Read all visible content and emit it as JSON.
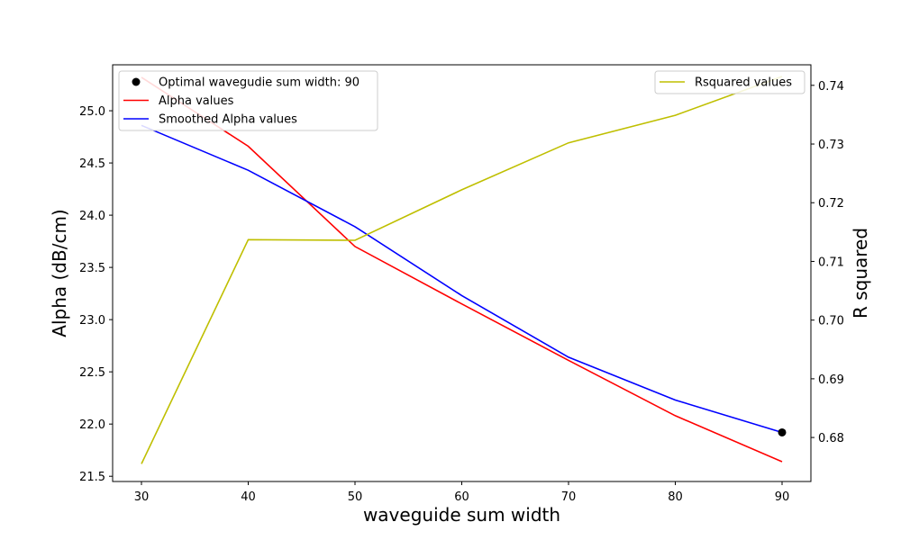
{
  "chart_data": {
    "type": "line",
    "x": [
      30,
      40,
      50,
      60,
      70,
      80,
      90
    ],
    "xlabel": "waveguide sum width",
    "xlim": [
      27.3,
      92.7
    ],
    "x_ticks": [
      30,
      40,
      50,
      60,
      70,
      80,
      90
    ],
    "left_axis": {
      "label": "Alpha (dB/cm)",
      "ylim": [
        21.45,
        25.44
      ],
      "ticks": [
        "21.5",
        "22.0",
        "22.5",
        "23.0",
        "23.5",
        "24.0",
        "24.5",
        "25.0"
      ]
    },
    "right_axis": {
      "label": "R squared",
      "ylim": [
        0.6725,
        0.7435
      ],
      "ticks": [
        "0.68",
        "0.69",
        "0.70",
        "0.71",
        "0.72",
        "0.73",
        "0.74"
      ]
    },
    "series": [
      {
        "name": "Alpha values",
        "axis": "left",
        "color": "#ff0000",
        "values": [
          25.32,
          24.66,
          23.7,
          23.15,
          22.61,
          22.08,
          21.64
        ]
      },
      {
        "name": "Smoothed Alpha values",
        "axis": "left",
        "color": "#0000ff",
        "values": [
          24.86,
          24.43,
          23.89,
          23.23,
          22.64,
          22.23,
          21.92
        ]
      },
      {
        "name": "Rsquared values",
        "axis": "right",
        "color": "#bfbf00",
        "values": [
          0.6755,
          0.7137,
          0.7136,
          0.7222,
          0.7302,
          0.7349,
          0.7415
        ]
      }
    ],
    "marker": {
      "name": "Optimal wavegudie sum width: 90",
      "x": 90,
      "y": 21.92,
      "axis": "left",
      "color": "#000000"
    },
    "legends": [
      {
        "position": "upper-left",
        "entries": [
          "Optimal wavegudie sum width: 90",
          "Alpha values",
          "Smoothed Alpha values"
        ]
      },
      {
        "position": "upper-right",
        "entries": [
          "Rsquared values"
        ]
      }
    ],
    "grid": false
  }
}
